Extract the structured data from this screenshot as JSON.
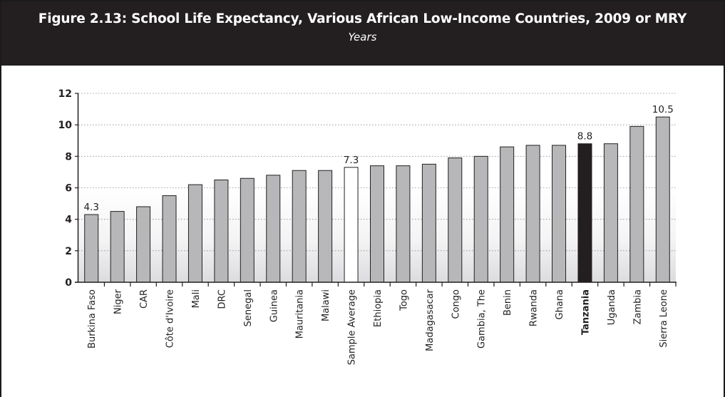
{
  "figure": {
    "title": "Figure 2.13: School Life Expectancy, Various African Low-Income Countries, 2009 or MRY",
    "subtitle": "Years"
  },
  "colors": {
    "header_bg": "#231f20",
    "bar_default": "#b7b7b9",
    "bar_average": "#ffffff",
    "bar_highlight": "#231f20",
    "gridline": "#888888"
  },
  "chart_data": {
    "type": "bar",
    "categories": [
      "Burkina Faso",
      "Niger",
      "CAR",
      "Côte d'Ivoire",
      "Mali",
      "DRC",
      "Senegal",
      "Guinea",
      "Mauritania",
      "Malawi",
      "Sample Average",
      "Ethiopia",
      "Togo",
      "Madagasacar",
      "Congo",
      "Gambia, The",
      "Benin",
      "Rwanda",
      "Ghana",
      "Tanzania",
      "Uganda",
      "Zambia",
      "Sierra Leone"
    ],
    "values": [
      4.3,
      4.5,
      4.8,
      5.5,
      6.2,
      6.5,
      6.6,
      6.8,
      7.1,
      7.1,
      7.3,
      7.4,
      7.4,
      7.5,
      7.9,
      8.0,
      8.6,
      8.7,
      8.7,
      8.8,
      8.8,
      9.9,
      10.5
    ],
    "highlight_category": "Tanzania",
    "average_category": "Sample Average",
    "data_labels": [
      {
        "category": "Burkina Faso",
        "text": "4.3"
      },
      {
        "category": "Sample Average",
        "text": "7.3"
      },
      {
        "category": "Tanzania",
        "text": "8.8"
      },
      {
        "category": "Sierra Leone",
        "text": "10.5"
      }
    ],
    "ylim": [
      0,
      12
    ],
    "yticks": [
      "0",
      "2",
      "4",
      "6",
      "8",
      "10",
      "12"
    ],
    "grid": true,
    "xlabel": "",
    "ylabel": ""
  }
}
